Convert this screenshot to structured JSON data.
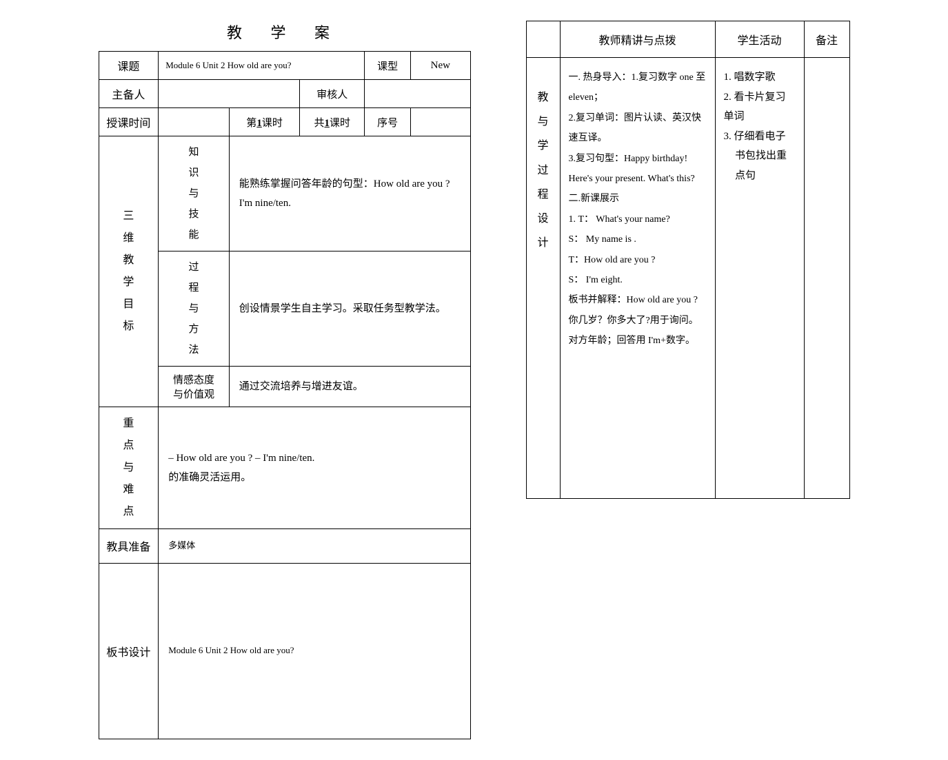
{
  "title": "教 学 案",
  "left": {
    "labels": {
      "topic": "课题",
      "type": "课型",
      "preparer": "主备人",
      "reviewer": "审核人",
      "teachTime": "授课时间",
      "periodPrefix": "第",
      "periodNum": "1",
      "periodSuffix": "课时",
      "totalPrefix": "共",
      "totalNum": "1",
      "totalSuffix": "课时",
      "seq": "序号",
      "goals": "三维教学目标",
      "knowledge": "知识与技能",
      "process": "过程与方法",
      "affect": "情感态度与价值观",
      "keyDiff": "重点与难点",
      "aids": "教具准备",
      "board": "板书设计"
    },
    "values": {
      "topic": "Module 6  Unit 2  How old are you?",
      "type": "New",
      "knowledge": "能熟练掌握问答年龄的句型：How old are you ? I'm nine/ten.",
      "process": "创设情景学生自主学习。采取任务型教学法。",
      "affect": "通过交流培养与增进友谊。",
      "keyDiff": "– How old are you ? – I'm nine/ten.\n的准确灵活运用。",
      "aids": "多媒体",
      "board": "Module 6  Unit 2  How old are you?"
    }
  },
  "right": {
    "headers": {
      "teacher": "教师精讲与点拨",
      "student": "学生活动",
      "note": "备注"
    },
    "sideLabel": "教与学过程设计",
    "teacherText": "一. 热身导入：1.复习数字 one 至 eleven；\n2.复习单词：图片认读、英汉快速互译。\n3.复习句型：Happy birthday!  Here's your present. What's this?\n二.新课展示\n1. T： What's your name?\nS： My name is           .\nT：How old are you ?\nS： I'm eight.\n板书并解释：How old are you ?你几岁？你多大了?用于询问。对方年龄；回答用 I'm+数字。",
    "studentList": [
      "1. 唱数字歌",
      "2. 看卡片复习单词",
      "3. 仔细看电子书包找出重点句"
    ]
  }
}
